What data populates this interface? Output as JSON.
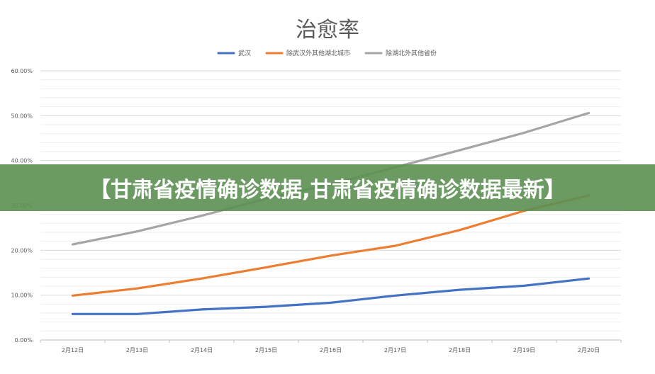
{
  "banner": {
    "text": "【甘肃省疫情确诊数据,甘肃省疫情确诊数据最新】"
  },
  "chart_data": {
    "type": "line",
    "title": "治愈率",
    "xlabel": "",
    "ylabel": "",
    "categories": [
      "2月12日",
      "2月13日",
      "2月14日",
      "2月15日",
      "2月16日",
      "2月17日",
      "2月18日",
      "2月19日",
      "2月20日"
    ],
    "ylim": [
      0,
      0.6
    ],
    "yticks": [
      "0.00%",
      "10.00%",
      "20.00%",
      "30.00%",
      "40.00%",
      "50.00%",
      "60.00%"
    ],
    "grid": true,
    "legend_position": "top-center",
    "series": [
      {
        "name": "武汉",
        "color": "#4472c4",
        "values": [
          0.058,
          0.058,
          0.068,
          0.074,
          0.083,
          0.099,
          0.112,
          0.121,
          0.137
        ]
      },
      {
        "name": "除武汉外其他湖北城市",
        "color": "#ed7d31",
        "values": [
          0.099,
          0.115,
          0.137,
          0.162,
          0.188,
          0.21,
          0.245,
          0.288,
          0.322
        ]
      },
      {
        "name": "除湖北外其他省份",
        "color": "#a5a5a5",
        "values": [
          0.213,
          0.242,
          0.277,
          0.315,
          0.347,
          0.385,
          0.423,
          0.462,
          0.506
        ]
      }
    ]
  }
}
